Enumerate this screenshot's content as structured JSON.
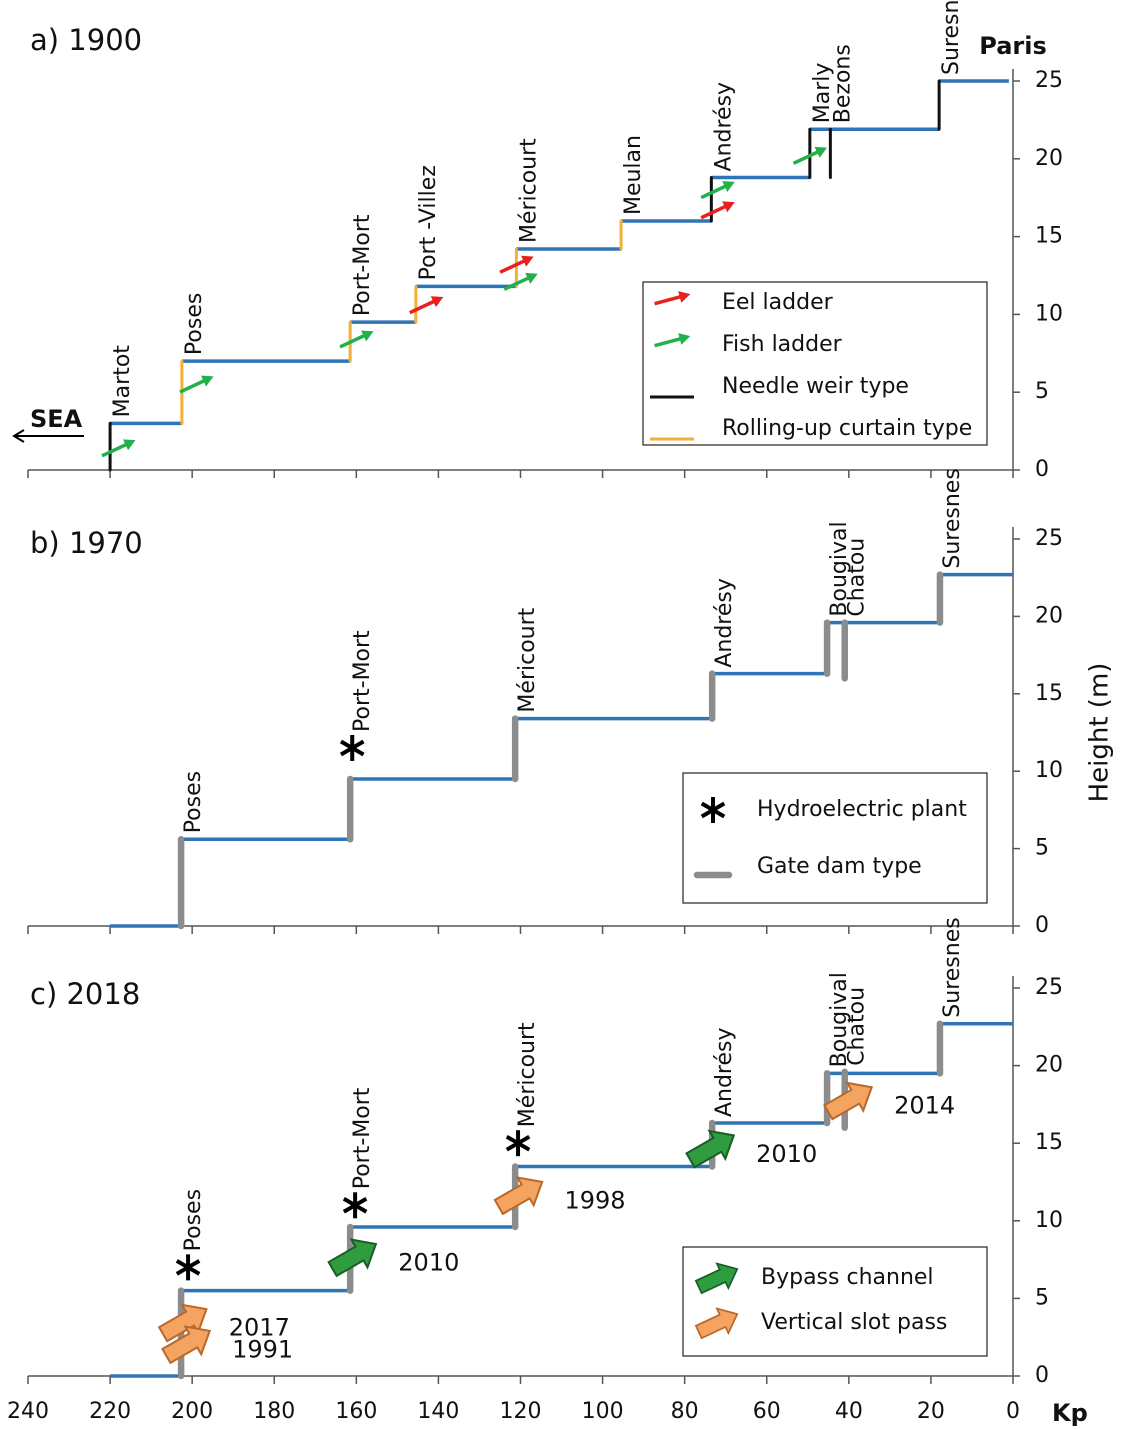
{
  "chart_data": [
    {
      "type": "step-profile",
      "title": "a) 1900",
      "sea_label": "SEA",
      "end_label": "Paris",
      "xlim": [
        240,
        0
      ],
      "xticks": [
        240,
        220,
        200,
        180,
        160,
        140,
        120,
        100,
        80,
        60,
        40,
        20,
        0
      ],
      "show_xtick_labels": false,
      "ylim": [
        0,
        25
      ],
      "yticks": [
        0,
        5,
        10,
        15,
        20,
        25
      ],
      "reach_color": "#2e75b6",
      "levels": [
        {
          "from": 220,
          "to": 202.5,
          "h": 3
        },
        {
          "from": 202.5,
          "to": 161.5,
          "h": 7
        },
        {
          "from": 161.5,
          "to": 145.5,
          "h": 9.5
        },
        {
          "from": 145.5,
          "to": 121,
          "h": 11.8
        },
        {
          "from": 121,
          "to": 95.5,
          "h": 14.2
        },
        {
          "from": 95.5,
          "to": 73.5,
          "h": 16
        },
        {
          "from": 73.5,
          "to": 49.5,
          "h": 18.8
        },
        {
          "from": 49.5,
          "to": 18,
          "h": 21.9
        },
        {
          "from": 18,
          "to": 1,
          "h": 25
        }
      ],
      "ladders": [
        {
          "name": "Eel ladder",
          "color": "#e8201e",
          "arrows": [
            {
              "kp": 143,
              "h": 10.6
            },
            {
              "kp": 121,
              "h": 13.2
            },
            {
              "kp": 72,
              "h": 16.7
            }
          ]
        },
        {
          "name": "Fish ladder",
          "color": "#22b04b",
          "arrows": [
            {
              "kp": 218,
              "h": 1.4
            },
            {
              "kp": 199,
              "h": 5.5
            },
            {
              "kp": 160,
              "h": 8.4
            },
            {
              "kp": 120,
              "h": 12.1
            },
            {
              "kp": 72,
              "h": 18
            },
            {
              "kp": 49.5,
              "h": 20.2
            }
          ]
        }
      ],
      "dam_types": [
        {
          "name": "Needle weir type",
          "color": "#111111",
          "dams": [
            {
              "name": "Martot",
              "kp": 220,
              "from": 0,
              "to": 3
            },
            {
              "name": "Andrésy",
              "kp": 73.5,
              "from": 16,
              "to": 18.8
            },
            {
              "name": "Marly",
              "kp": 49.5,
              "from": 18.8,
              "to": 21.9
            },
            {
              "name": "Bezons",
              "kp": 44.5,
              "from": 18.8,
              "to": 21.9
            },
            {
              "name": "Suresnes",
              "kp": 18,
              "from": 21.9,
              "to": 25
            }
          ]
        },
        {
          "name": "Rolling-up curtain type",
          "color": "#f2b134",
          "dams": [
            {
              "name": "Poses",
              "kp": 202.5,
              "from": 3,
              "to": 7
            },
            {
              "name": "Port-Mort",
              "kp": 161.5,
              "from": 7,
              "to": 9.5
            },
            {
              "name": "Port -Villez",
              "kp": 145.5,
              "from": 9.5,
              "to": 11.8
            },
            {
              "name": "Méricourt",
              "kp": 121,
              "from": 11.8,
              "to": 14.2
            },
            {
              "name": "Meulan",
              "kp": 95.5,
              "from": 14.2,
              "to": 16
            }
          ]
        }
      ]
    },
    {
      "type": "step-profile",
      "title": "b) 1970",
      "ylabel": "Height (m)",
      "xlim": [
        240,
        0
      ],
      "xticks": [
        240,
        220,
        200,
        180,
        160,
        140,
        120,
        100,
        80,
        60,
        40,
        20,
        0
      ],
      "show_xtick_labels": false,
      "ylim": [
        0,
        25
      ],
      "yticks": [
        0,
        5,
        10,
        15,
        20,
        25
      ],
      "reach_color": "#2e75b6",
      "levels": [
        {
          "from": 220,
          "to": 202.7,
          "h": 0
        },
        {
          "from": 202.7,
          "to": 161.5,
          "h": 5.6
        },
        {
          "from": 161.5,
          "to": 121.3,
          "h": 9.5
        },
        {
          "from": 121.3,
          "to": 73.3,
          "h": 13.4
        },
        {
          "from": 73.3,
          "to": 45.3,
          "h": 16.3
        },
        {
          "from": 45.3,
          "to": 17.8,
          "h": 19.6
        },
        {
          "from": 17.8,
          "to": 0,
          "h": 22.7
        }
      ],
      "dam_legend": "Gate dam type",
      "dam_color": "#8c8c8c",
      "dams": [
        {
          "name": "Poses",
          "kp": 202.7,
          "from": 0,
          "to": 5.6
        },
        {
          "name": "Port-Mort",
          "kp": 161.5,
          "from": 5.6,
          "to": 9.5
        },
        {
          "name": "Méricourt",
          "kp": 121.3,
          "from": 9.5,
          "to": 13.4
        },
        {
          "name": "Andrésy",
          "kp": 73.3,
          "from": 13.4,
          "to": 16.3
        },
        {
          "name": "Bougival",
          "kp": 45.3,
          "from": 16.3,
          "to": 19.6
        },
        {
          "name": "Chatou",
          "kp": 41,
          "from": 16,
          "to": 19.6
        },
        {
          "name": "Suresnes",
          "kp": 17.8,
          "from": 19.6,
          "to": 22.7
        }
      ],
      "hydro": {
        "name": "Hydroelectric plant",
        "points": [
          {
            "kp": 161,
            "h": 11.5
          }
        ]
      }
    },
    {
      "type": "step-profile",
      "title": "c) 2018",
      "xlabel": "Kp",
      "xlim": [
        240,
        0
      ],
      "xticks": [
        240,
        220,
        200,
        180,
        160,
        140,
        120,
        100,
        80,
        60,
        40,
        20,
        0
      ],
      "show_xtick_labels": true,
      "ylim": [
        0,
        25
      ],
      "yticks": [
        0,
        5,
        10,
        15,
        20,
        25
      ],
      "reach_color": "#2e75b6",
      "levels": [
        {
          "from": 220,
          "to": 202.7,
          "h": 0
        },
        {
          "from": 202.7,
          "to": 161.5,
          "h": 5.5
        },
        {
          "from": 161.5,
          "to": 121.3,
          "h": 9.6
        },
        {
          "from": 121.3,
          "to": 73.3,
          "h": 13.5
        },
        {
          "from": 73.3,
          "to": 45.3,
          "h": 16.3
        },
        {
          "from": 45.3,
          "to": 17.8,
          "h": 19.5
        },
        {
          "from": 17.8,
          "to": 0,
          "h": 22.7
        }
      ],
      "dam_color": "#8c8c8c",
      "dams": [
        {
          "name": "Poses",
          "kp": 202.7,
          "from": 0,
          "to": 5.5
        },
        {
          "name": "Port-Mort",
          "kp": 161.5,
          "from": 5.5,
          "to": 9.6
        },
        {
          "name": "Méricourt",
          "kp": 121.3,
          "from": 9.6,
          "to": 13.5
        },
        {
          "name": "Andrésy",
          "kp": 73.3,
          "from": 13.5,
          "to": 16.3
        },
        {
          "name": "Bougival",
          "kp": 45.3,
          "from": 16.3,
          "to": 19.5
        },
        {
          "name": "Chatou",
          "kp": 41,
          "from": 16,
          "to": 19.6
        },
        {
          "name": "Suresnes",
          "kp": 17.8,
          "from": 19.5,
          "to": 22.7
        }
      ],
      "hydro": {
        "points": [
          {
            "kp": 201,
            "h": 7
          },
          {
            "kp": 160.3,
            "h": 11
          },
          {
            "kp": 120.6,
            "h": 15
          }
        ]
      },
      "passes": [
        {
          "name": "Bypass channel",
          "color": "#2e9c3f",
          "stroke": "#1a5e26",
          "items": [
            {
              "kp": 160.5,
              "h": 7.7,
              "year": "2010"
            },
            {
              "kp": 73.3,
              "h": 14.7,
              "year": "2010"
            }
          ]
        },
        {
          "name": "Vertical slot pass",
          "color": "#f4a460",
          "stroke": "#b8682a",
          "items": [
            {
              "kp": 201.8,
              "h": 3.5,
              "year": "2017"
            },
            {
              "kp": 201,
              "h": 2.1,
              "year": "1991"
            },
            {
              "kp": 120,
              "h": 11.7,
              "year": "1998"
            },
            {
              "kp": 39.7,
              "h": 17.8,
              "year": "2014"
            }
          ]
        }
      ]
    }
  ]
}
